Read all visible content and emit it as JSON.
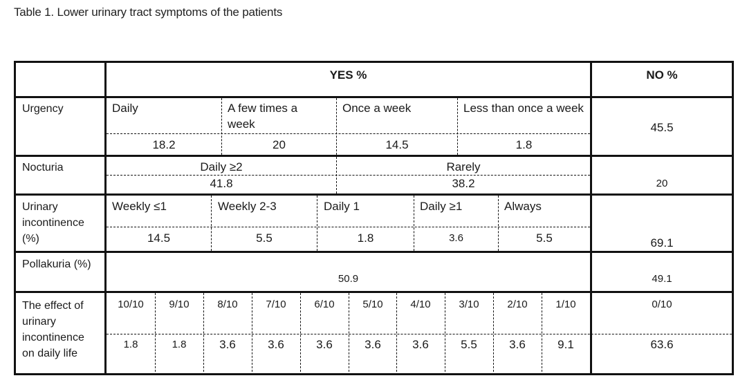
{
  "caption": "Table 1. Lower urinary tract symptoms of the patients",
  "header": {
    "yes": "YES %",
    "no": "NO %"
  },
  "urgency": {
    "label": "Urgency",
    "cats": [
      "Daily",
      "A few times a week",
      "Once a week",
      "Less than once a week"
    ],
    "values": [
      "18.2",
      "20",
      "14.5",
      "1.8"
    ],
    "no": "45.5"
  },
  "nocturia": {
    "label": "Nocturia",
    "cats": [
      "Daily ≥2",
      "Rarely"
    ],
    "values": [
      "41.8",
      "38.2"
    ],
    "no": "20"
  },
  "incontinence": {
    "label": "Urinary incontinence (%)",
    "cats": [
      "Weekly ≤1",
      "Weekly 2-3",
      "Daily 1",
      "Daily ≥1",
      "Always"
    ],
    "values": [
      "14.5",
      "5.5",
      "1.8",
      "3.6",
      "5.5"
    ],
    "no": "69.1"
  },
  "pollakuria": {
    "label": "Pollakuria (%)",
    "value": "50.9",
    "no": "49.1"
  },
  "effect": {
    "label": "The effect of urinary incontinence on daily life",
    "cats": [
      "10/10",
      "9/10",
      "8/10",
      "7/10",
      "6/10",
      "5/10",
      "4/10",
      "3/10",
      "2/10",
      "1/10"
    ],
    "values": [
      "1.8",
      "1.8",
      "3.6",
      "3.6",
      "3.6",
      "3.6",
      "3.6",
      "5.5",
      "3.6",
      "9.1"
    ],
    "no_cat": "0/10",
    "no": "63.6"
  }
}
